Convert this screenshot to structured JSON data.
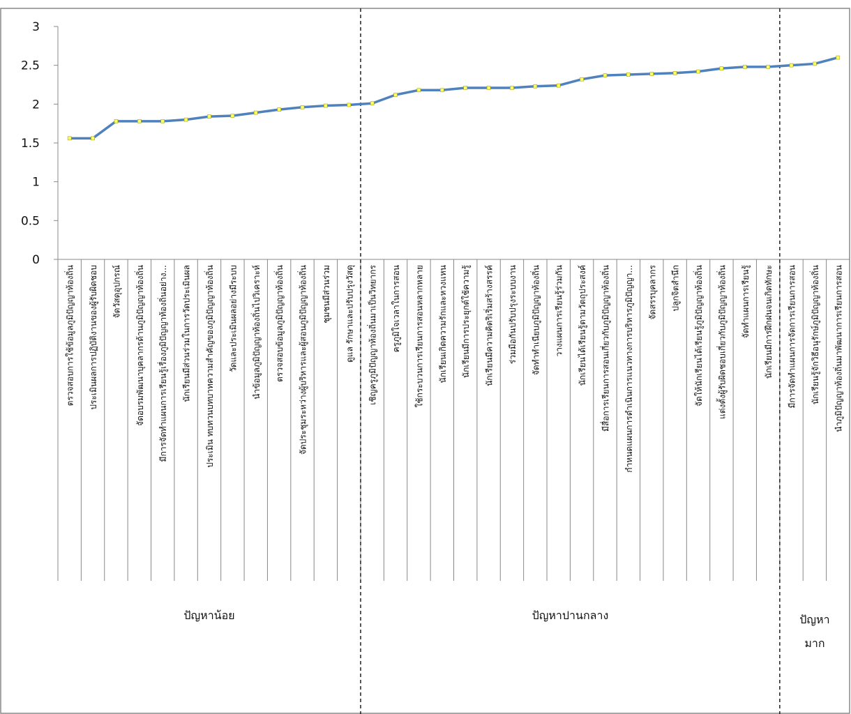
{
  "chart_data": {
    "type": "line",
    "title": "",
    "xlabel": "",
    "ylabel": "",
    "ylim": [
      0,
      3
    ],
    "yticks": [
      "0",
      "0.5",
      "1",
      "1.5",
      "2",
      "2.5",
      "3"
    ],
    "grid": false,
    "legend": "none",
    "colors": {
      "line": "#4f81bd",
      "marker": "#ffff66",
      "marker_edge": "#a6a600"
    },
    "categories": [
      "ตรวจสอบการใช้ข้อมูลภูมิปัญญาท้องถิ่น",
      "ประเมินผลการปฏิบัติงานของผู้รับผิดชอบ",
      "จัดวัสดุอุปกรณ์",
      "จัดอบรมพัฒนาบุคลากรด้านภูมิปัญญาท้องถิ่น",
      "มีการจัดทำแผนการเรียนรู้เรื่องภูมิปัญญาท้องถิ่นอย่าง...",
      "นักเรียนมีส่วนร่วมในการวัดประเมินผล",
      "ประเมิน ทบทวนบทบาทความสำคัญของภูมิปัญญาท้องถิ่น",
      "วัดและประเมินผลอย่างมีระบบ",
      "นำข้อมูลภูมิปัญญาท้องถิ่นไปวิเคราะห์",
      "ตรวจสอบข้อมูลภูมิปัญญาท้องถิ่น",
      "จัดประชุมระหว่างผู้บริหารและผู้สอนภูมิปัญญาท้องถิ่น",
      "ชุมชนมีส่วนร่วม",
      "ดูแล รักษาและปรับปรุงวัสดุ",
      "เชิญครูภูมิปัญญาท้องถิ่นมาเป็นวิทยากร",
      "ครูภูมิใจเวลาในการสอน",
      "ใช้กระบวนการเรียนการสอนหลากหลาย",
      "นักเรียนเกิดความรักและหวงแหน",
      "นักเรียนมีการประยุกต์ใช้ความรู้",
      "นักเรียนมีความคิดริเริ่มสร้างสรรค์",
      "ร่วมมือกันปรับปรุงระบบงาน",
      "จัดทำทำเนียบภูมิปัญญาท้องถิ่น",
      "วางแผนการเรียนรู้ร่วมกัน",
      "นักเรียนได้เรียนรู้ตามวัตถุประสงค์",
      "มีสื่อการเรียนการสอนเกี่ยวกับภูมิปัญญาท้องถิ่น",
      "กำหนดแผนการดำเนินการแนวทางการบริหารภูมิปัญญา...",
      "จัดสรรบุคลากร",
      "ปลูกจิตสำนึก",
      "จัดให้นักเรียนได้เรียนรู้ภูมิปัญญาท้องถิ่น",
      "แต่งตั้งผู้รับผิดชอบเกี่ยวกับภูมิปัญญาท้องถิ่น",
      "จัดทำแผนการเรียนรู้",
      "นักเรียนมีการฝึกฝนจนเกิดทักษะ",
      "มีการจัดทำแผนการจัดการเรียนการสอน",
      "นักเรียนรู้จักวิธีอนุรักษ์ภูมิปัญญาท้องถิ่น",
      "นำภูมิปัญญาท้องถิ่นมาพัฒนาการเรียนการสอน"
    ],
    "series": [
      {
        "values": [
          1.56,
          1.56,
          1.78,
          1.78,
          1.78,
          1.8,
          1.84,
          1.85,
          1.89,
          1.93,
          1.96,
          1.98,
          1.99,
          2.01,
          2.12,
          2.18,
          2.18,
          2.21,
          2.21,
          2.21,
          2.23,
          2.24,
          2.32,
          2.37,
          2.38,
          2.39,
          2.4,
          2.42,
          2.46,
          2.48,
          2.48,
          2.5,
          2.52,
          2.6
        ]
      }
    ],
    "groups": [
      {
        "label": "ปัญหาน้อย",
        "start": 0,
        "end": 12
      },
      {
        "label": "ปัญหาปานกลาง",
        "start": 13,
        "end": 30
      },
      {
        "label": "ปัญหามาก",
        "label_lines": [
          "ปัญหา",
          "มาก"
        ],
        "start": 31,
        "end": 33
      }
    ]
  }
}
